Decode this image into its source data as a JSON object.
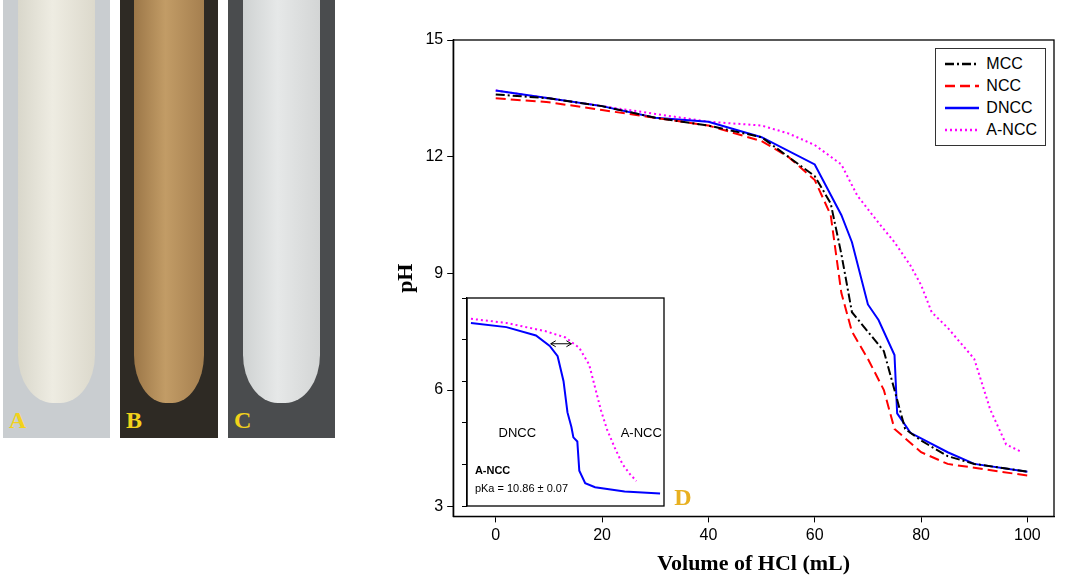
{
  "photo_labels": [
    "A",
    "B",
    "C"
  ],
  "chart_data": [
    {
      "type": "line",
      "xlabel": "Volume of HCl (mL)",
      "ylabel": "pH",
      "xlim": [
        -8,
        105
      ],
      "ylim": [
        2.75,
        15
      ],
      "xticks": [
        0,
        20,
        40,
        60,
        80,
        100
      ],
      "yticks": [
        3,
        6,
        9,
        12,
        15
      ],
      "grid": false,
      "legend": "upper right",
      "annotations": [
        "D"
      ],
      "series": [
        {
          "name": "MCC",
          "color": "#000000",
          "line_style": "dashdot",
          "x": [
            0,
            10,
            20,
            30,
            40,
            50,
            55,
            60,
            63,
            65,
            67,
            70,
            73,
            75,
            77,
            80,
            85,
            90,
            100
          ],
          "values": [
            13.6,
            13.5,
            13.3,
            13.0,
            12.8,
            12.5,
            12.0,
            11.5,
            10.8,
            9.5,
            8.0,
            7.5,
            7.0,
            6.0,
            5.0,
            4.7,
            4.3,
            4.1,
            3.9
          ]
        },
        {
          "name": "NCC",
          "color": "#ff0000",
          "line_style": "dashed",
          "x": [
            0,
            10,
            20,
            30,
            40,
            50,
            55,
            60,
            63,
            65,
            67,
            70,
            73,
            75,
            80,
            85,
            90,
            100
          ],
          "values": [
            13.5,
            13.4,
            13.2,
            13.0,
            12.8,
            12.4,
            12.0,
            11.4,
            10.5,
            8.5,
            7.5,
            6.8,
            6.0,
            5.0,
            4.4,
            4.1,
            4.0,
            3.8
          ]
        },
        {
          "name": "DNCC",
          "color": "#0000ff",
          "line_style": "solid",
          "x": [
            0,
            10,
            20,
            30,
            40,
            50,
            60,
            65,
            67,
            70,
            72,
            75,
            75.5,
            78,
            85,
            90,
            100
          ],
          "values": [
            13.7,
            13.5,
            13.3,
            13.0,
            12.9,
            12.5,
            11.8,
            10.5,
            9.8,
            8.2,
            7.8,
            6.9,
            5.4,
            4.9,
            4.4,
            4.1,
            3.9
          ]
        },
        {
          "name": "A-NCC",
          "color": "#ff00ff",
          "line_style": "dotted",
          "x": [
            0,
            10,
            20,
            30,
            40,
            50,
            55,
            60,
            65,
            68,
            72,
            75,
            78,
            80,
            82,
            85,
            90,
            93,
            96,
            99
          ],
          "values": [
            13.7,
            13.5,
            13.3,
            13.1,
            12.9,
            12.8,
            12.6,
            12.3,
            11.8,
            11.0,
            10.3,
            9.8,
            9.2,
            8.7,
            8.0,
            7.6,
            6.8,
            5.5,
            4.6,
            4.4
          ]
        }
      ]
    },
    {
      "type": "line",
      "xlim": [
        0,
        100
      ],
      "ylim": [
        0,
        100
      ],
      "yticks": [
        0,
        20,
        40,
        60,
        80,
        100
      ],
      "tick_labels": false,
      "grid": false,
      "annotations": [
        "A-NCC",
        "pKa = 10.86 ± 0.07"
      ],
      "series": [
        {
          "name": "DNCC",
          "color": "#0000ff",
          "line_style": "solid",
          "x": [
            2,
            20,
            35,
            42,
            46,
            49,
            51,
            53,
            54,
            56,
            57,
            60,
            65,
            80,
            98
          ],
          "values": [
            88,
            86,
            82,
            77,
            72,
            60,
            45,
            38,
            33,
            31,
            17,
            11,
            9,
            7,
            6
          ]
        },
        {
          "name": "A-NCC",
          "color": "#ff00ff",
          "line_style": "dotted",
          "x": [
            2,
            20,
            40,
            50,
            57,
            62,
            65,
            68,
            71,
            75,
            79,
            83,
            86
          ],
          "values": [
            90,
            88,
            84,
            81,
            76,
            68,
            57,
            46,
            37,
            28,
            20,
            15,
            12
          ]
        }
      ]
    }
  ]
}
